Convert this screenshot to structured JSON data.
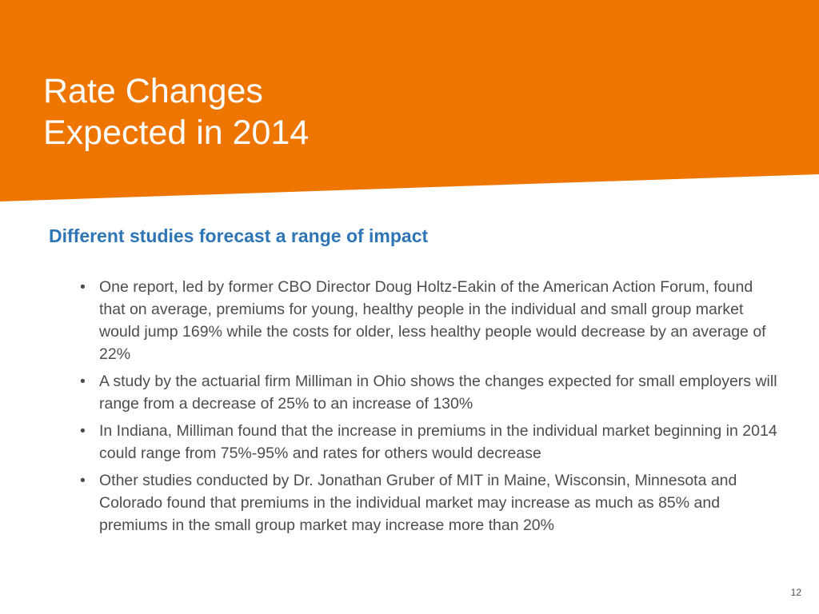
{
  "colors": {
    "banner": "#ee7600",
    "title": "#ffffff",
    "subtitle": "#2e75b6",
    "body_text": "#4d4d4d",
    "background": "#ffffff"
  },
  "slide": {
    "title_line1": "Rate Changes",
    "title_line2": "Expected in 2014",
    "subtitle": "Different studies forecast a range of impact",
    "bullet_glyph": "•",
    "bullets": [
      "One report, led by former CBO Director Doug Holtz-Eakin of the American Action Forum, found that on average, premiums for young, healthy people in the individual and small group market would jump 169% while the costs for older, less healthy people would decrease by an average of 22%",
      "A study by the actuarial firm Milliman in Ohio shows the changes expected for small employers will range from a decrease of 25% to an increase of 130%",
      "In Indiana, Milliman found that the increase in premiums in the individual market beginning in 2014 could range from 75%-95% and rates for others would decrease",
      "Other studies conducted by Dr. Jonathan Gruber of MIT in Maine, Wisconsin, Minnesota and Colorado found that premiums in the individual market may increase as much as 85% and premiums in the small group market may increase more than 20%"
    ],
    "page_number": "12"
  }
}
